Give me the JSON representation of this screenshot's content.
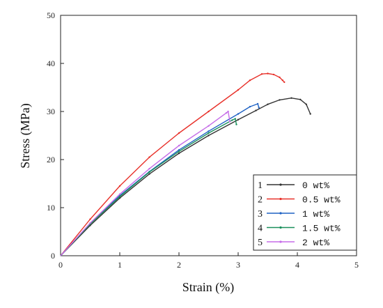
{
  "chart_data": {
    "type": "line",
    "xlabel": "Strain (%)",
    "ylabel": "Stress (MPa)",
    "xlim": [
      0,
      5
    ],
    "ylim": [
      0,
      50
    ],
    "xticks": [
      0,
      1,
      2,
      3,
      4,
      5
    ],
    "yticks": [
      0,
      10,
      20,
      30,
      40,
      50
    ],
    "grid": false,
    "legend_position": "bottom-right",
    "series": [
      {
        "id": "1",
        "name": "0 wt%",
        "color": "#333333",
        "points": [
          [
            0,
            0
          ],
          [
            0.5,
            6.3
          ],
          [
            1,
            12
          ],
          [
            1.5,
            17
          ],
          [
            2,
            21.3
          ],
          [
            2.5,
            25
          ],
          [
            3,
            28.3
          ],
          [
            3.3,
            30.2
          ],
          [
            3.5,
            31.5
          ],
          [
            3.7,
            32.4
          ],
          [
            3.9,
            32.8
          ],
          [
            4.05,
            32.5
          ],
          [
            4.15,
            31.5
          ],
          [
            4.22,
            29.5
          ]
        ]
      },
      {
        "id": "2",
        "name": "0.5 wt%",
        "color": "#e8312a",
        "points": [
          [
            0,
            0
          ],
          [
            0.5,
            7.6
          ],
          [
            1,
            14.5
          ],
          [
            1.5,
            20.5
          ],
          [
            2,
            25.5
          ],
          [
            2.5,
            30
          ],
          [
            3,
            34.5
          ],
          [
            3.2,
            36.5
          ],
          [
            3.4,
            37.8
          ],
          [
            3.5,
            37.9
          ],
          [
            3.6,
            37.7
          ],
          [
            3.7,
            37.1
          ],
          [
            3.75,
            36.5
          ],
          [
            3.78,
            36.1
          ]
        ]
      },
      {
        "id": "3",
        "name": "1 wt%",
        "color": "#1f62c4",
        "points": [
          [
            0,
            0
          ],
          [
            0.5,
            6.7
          ],
          [
            1,
            12.5
          ],
          [
            1.5,
            17.5
          ],
          [
            2,
            22
          ],
          [
            2.5,
            25.9
          ],
          [
            3,
            29.5
          ],
          [
            3.2,
            31
          ],
          [
            3.33,
            31.6
          ],
          [
            3.35,
            30.8
          ]
        ]
      },
      {
        "id": "4",
        "name": "1.5 wt%",
        "color": "#1a8f5c",
        "points": [
          [
            0,
            0
          ],
          [
            0.5,
            6.6
          ],
          [
            1,
            12.3
          ],
          [
            1.5,
            17.4
          ],
          [
            2,
            21.7
          ],
          [
            2.5,
            25.5
          ],
          [
            2.9,
            28.2
          ],
          [
            2.95,
            28.5
          ],
          [
            2.97,
            27.3
          ]
        ]
      },
      {
        "id": "5",
        "name": "2 wt%",
        "color": "#c56ce8",
        "points": [
          [
            0,
            0
          ],
          [
            0.5,
            6.8
          ],
          [
            1,
            12.8
          ],
          [
            1.5,
            18.1
          ],
          [
            2,
            22.9
          ],
          [
            2.5,
            27
          ],
          [
            2.8,
            29.7
          ],
          [
            2.83,
            30
          ],
          [
            2.86,
            27.9
          ]
        ]
      }
    ]
  }
}
